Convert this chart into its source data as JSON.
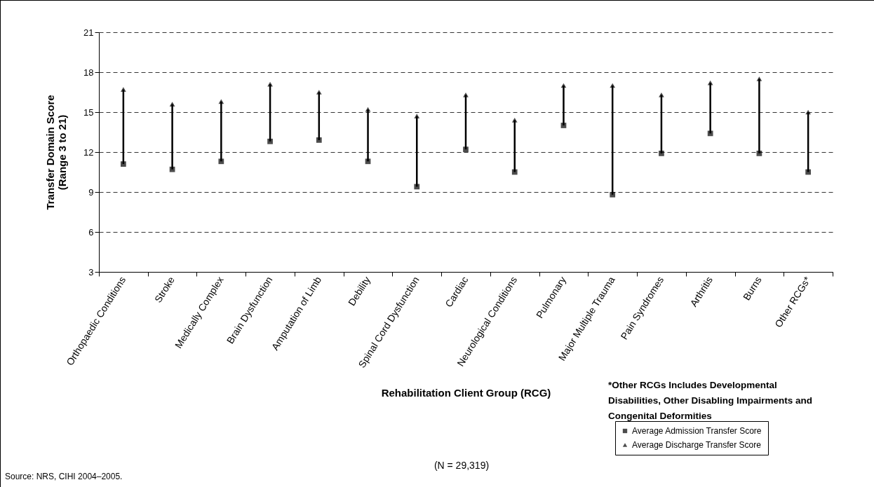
{
  "chart_data": {
    "type": "scatter",
    "ylabel": "Transfer Domain Score\n(Range 3 to 21)",
    "xlabel": "Rehabilitation Client Group (RCG)",
    "categories": [
      "Orthopaedic Conditions",
      "Stroke",
      "Medically Complex",
      "Brain Dysfunction",
      "Amputation of Limb",
      "Debility",
      "Spinal Cord Dysfunction",
      "Cardiac",
      "Neurological Conditions",
      "Pulmonary",
      "Major Multiple Trauma",
      "Pain Syndromes",
      "Arthritis",
      "Burns",
      "Other RCGs*"
    ],
    "series": [
      {
        "name": "Average Admission Transfer Score",
        "color": "#000000",
        "marker": "square",
        "values": [
          11.1,
          10.7,
          11.3,
          12.8,
          12.9,
          11.3,
          9.4,
          12.2,
          10.5,
          14.0,
          8.8,
          11.9,
          13.4,
          11.9,
          10.5
        ]
      },
      {
        "name": "Average Discharge Transfer Score",
        "color": "#000000",
        "marker": "triangle",
        "values": [
          16.7,
          15.6,
          15.8,
          17.1,
          16.5,
          15.2,
          14.7,
          16.3,
          14.4,
          17.0,
          17.0,
          16.3,
          17.2,
          17.5,
          15.0
        ]
      }
    ],
    "ylim": [
      3,
      21
    ],
    "yticks": [
      3,
      6,
      9,
      12,
      15,
      18,
      21
    ],
    "grid": "y",
    "legend": "bottom right",
    "annotations": [
      "(N = 29,319)",
      "*Other RCGs Includes Developmental Disabilities, Other Disabling Impairments and Congenital Deformities",
      "Source: NRS, CIHI 2004–2005."
    ]
  }
}
